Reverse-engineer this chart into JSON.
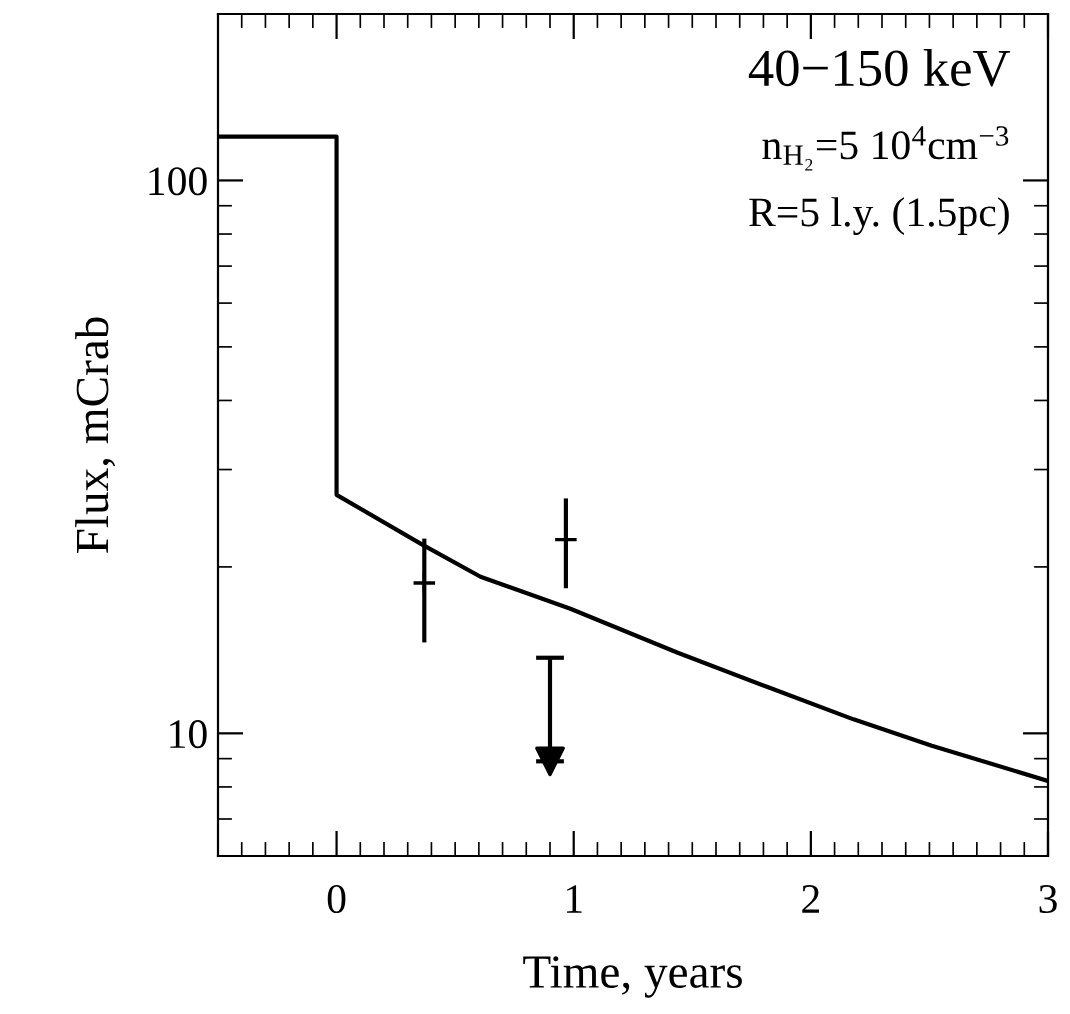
{
  "chart_data": {
    "type": "line",
    "xlabel": "Time, years",
    "ylabel": "Flux, mCrab",
    "xlim": [
      -0.5,
      3
    ],
    "ylim": [
      6,
      200
    ],
    "xticks": [
      0,
      1,
      2,
      3
    ],
    "yticks": [
      10,
      100
    ],
    "log": "y",
    "grid": false,
    "legend": false,
    "series": [
      {
        "color": "#000000",
        "x": [
          -0.5,
          0,
          0,
          0.365,
          0.607,
          0.986,
          1.436,
          1.823,
          2.18,
          2.51,
          3.0
        ],
        "values": [
          120,
          120,
          27,
          21.9,
          19.2,
          16.8,
          14.0,
          12.1,
          10.6,
          9.5,
          8.2
        ],
        "marker": "none"
      },
      {
        "type": "scatter",
        "color": "#000000",
        "x": [
          0.37,
          0.967
        ],
        "values": [
          18.7,
          22.4
        ],
        "errors": [
          [
            14.6,
            22.5
          ],
          [
            18.3,
            26.6
          ]
        ],
        "marker": "cross"
      },
      {
        "type": "scatter",
        "color": "#000000",
        "x": [
          0.9
        ],
        "values": [
          8.9
        ],
        "errors": [
          [
            8.9,
            13.7
          ]
        ],
        "marker": "triangle"
      }
    ],
    "annotations": [
      "40−150 keV",
      "n$_{H₂}$=5 10$^{4}$cm$^{−3}$",
      "R=5 l.y. (1.5pc)"
    ]
  }
}
